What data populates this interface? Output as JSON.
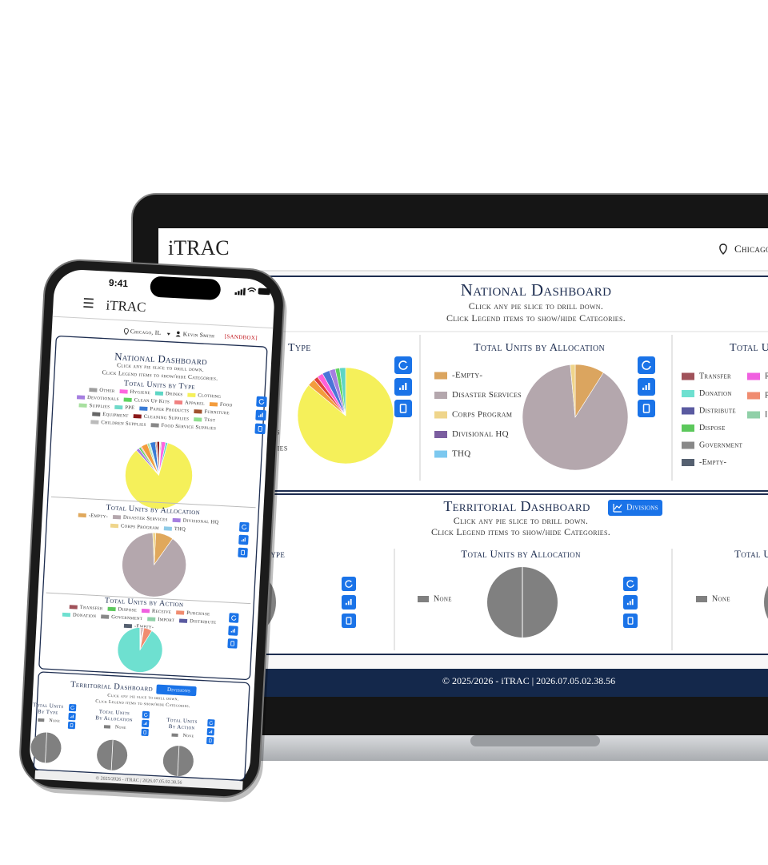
{
  "laptop": {
    "header": {
      "brand": "iTRAC",
      "location": "Chicago"
    },
    "national": {
      "title": "National Dashboard",
      "subtitle": [
        "Click any pie slice to drill down.",
        "Click Legend items to show/hide Categories."
      ],
      "by_type": {
        "title": "Type",
        "legend_fragments": [
          "es",
          "pplies"
        ],
        "colors": [
          "#f5f05a",
          "#f39c3c",
          "#e0413a",
          "#ff5fd8",
          "#4a74d8",
          "#a57ee0",
          "#5fd35f",
          "#5ed6c5"
        ],
        "values": [
          86,
          2.5,
          1.5,
          2,
          2.5,
          2,
          1.5,
          2
        ]
      },
      "by_allocation": {
        "title": "Total Units by Allocation",
        "labels": [
          "-Empty-",
          "Disaster Services",
          "Corps Program",
          "Divisional HQ",
          "THQ"
        ],
        "colors": [
          "#dba55f",
          "#b4a7ad",
          "#efd58b",
          "#7b5ea0",
          "#7cc8ef"
        ],
        "values": [
          9,
          89.5,
          1.5,
          0,
          0
        ]
      },
      "by_action": {
        "title": "Total U",
        "labels": [
          "Transfer",
          "Donation",
          "Distribute",
          "Dispose",
          "Government",
          "-Empty-",
          "R",
          "P",
          "I"
        ],
        "colors": [
          "#a0525a",
          "#6ee0d0",
          "#5a5aa0",
          "#5cc85c",
          "#888888",
          "#556070",
          "#f060e0",
          "#f08c70",
          "#90d0a8"
        ]
      }
    },
    "territorial": {
      "title": "Territorial Dashboard",
      "button": "Divisions",
      "subtitle": [
        "Click any pie slice to drill down.",
        "Click Legend items to show/hide Categories."
      ],
      "by_type": {
        "title": "Type",
        "colors": [
          "#808080"
        ],
        "values": [
          100
        ]
      },
      "by_allocation": {
        "title": "Total Units by Allocation",
        "labels": [
          "None"
        ],
        "colors": [
          "#808080"
        ],
        "values": [
          100
        ]
      },
      "by_action": {
        "title": "Total U",
        "labels": [
          "None"
        ],
        "colors": [
          "#808080"
        ],
        "values": [
          100
        ]
      }
    },
    "footer": "© 2025/2026 - iTRAC | 2026.07.05.02.38.56"
  },
  "phone": {
    "time": "9:41",
    "header": {
      "brand": "iTRAC",
      "location": "Chicago, IL",
      "user": "Kevin Smith",
      "env": "[SANDBOX]"
    },
    "national": {
      "title": "National Dashboard",
      "subtitle": [
        "Click any pie slice to drill down.",
        "Click Legend items to show/hide Categories."
      ],
      "by_type": {
        "title": "Total Units by Type",
        "labels": [
          "Other",
          "Hygiene",
          "Drinks",
          "Clothing",
          "Devotionals",
          "Clean Up Kits",
          "Apparel",
          "Food",
          "Supplies",
          "PPE",
          "Paper Products",
          "Furniture",
          "Equipment",
          "Cleaning Supplies",
          "Test",
          "Children Supplies",
          "Food Service Supplies"
        ],
        "colors": [
          "#9e9e9e",
          "#ff66e0",
          "#5ed6c5",
          "#f5f05a",
          "#a57ee0",
          "#5fd35f",
          "#f08080",
          "#f39c3c",
          "#a8e0a0",
          "#6fd9c9",
          "#3a7bd5",
          "#a0522d",
          "#666666",
          "#8b1a1a",
          "#90e090",
          "#bbbbbb",
          "#888888"
        ],
        "values": [
          0.5,
          2,
          1,
          84,
          1.5,
          1,
          0.5,
          3,
          1,
          0.5,
          2.5,
          0.5,
          0.3,
          1.2,
          0.1,
          0.2,
          0.2
        ]
      },
      "by_allocation": {
        "title": "Total Units by Allocation",
        "labels": [
          "-Empty-",
          "Disaster Services",
          "Divisional HQ",
          "Corps Program",
          "THQ"
        ],
        "colors": [
          "#e0a85c",
          "#b4a7ad",
          "#a57ee0",
          "#efd58b",
          "#8ecae6"
        ],
        "values": [
          9,
          89.5,
          0,
          1.5,
          0
        ]
      },
      "by_action": {
        "title": "Total Units by Action",
        "labels": [
          "Transfer",
          "Dispose",
          "Receive",
          "Purchase",
          "Donation",
          "Government",
          "Import",
          "Distribute",
          "-Empty-"
        ],
        "colors": [
          "#a0525a",
          "#5cc85c",
          "#f060e0",
          "#f08c70",
          "#6ee0d0",
          "#888888",
          "#90d0a8",
          "#5a5aa0",
          "#556070"
        ],
        "values": [
          1,
          0.5,
          0.5,
          6,
          91,
          0.5,
          0.3,
          0.2,
          0
        ]
      }
    },
    "territorial": {
      "title": "Territorial Dashboard",
      "button": "Divisions",
      "subtitle": [
        "Click any pie slice to drill down.",
        "Click Legend items to show/hide Categories."
      ],
      "by_type": {
        "title": [
          "Total Units",
          "By Type"
        ],
        "labels": [
          "None"
        ],
        "colors": [
          "#808080"
        ],
        "values": [
          100
        ]
      },
      "by_allocation": {
        "title": [
          "Total Units",
          "By Allocation"
        ],
        "labels": [
          "None"
        ],
        "colors": [
          "#808080"
        ],
        "values": [
          100
        ]
      },
      "by_action": {
        "title": [
          "Total Units",
          "By Action"
        ],
        "labels": [
          "None"
        ],
        "colors": [
          "#808080"
        ],
        "values": [
          100
        ]
      }
    },
    "footer": "© 2025/2026 - iTRAC | 2026.07.05.02.38.56"
  }
}
